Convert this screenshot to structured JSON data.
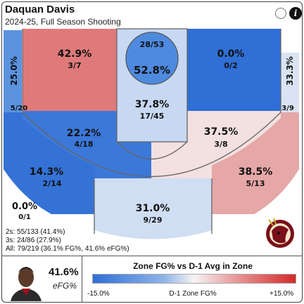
{
  "header": {
    "player_name": "Daquan Davis",
    "season_label": "2024-25, Full Season Shooting"
  },
  "colors": {
    "cold": "#2f6fd6",
    "neutral": "#f6f3f3",
    "hot": "#d42a2a",
    "court_lines": "#666666"
  },
  "zones": {
    "rim": {
      "pct": "52.8%",
      "makes_att": "28/53",
      "color": "#4d8ae0"
    },
    "paint": {
      "pct": "37.8%",
      "makes_att": "17/45",
      "color": "#c7d9f2"
    },
    "left_corner": {
      "pct": "25.0%",
      "makes_att": "5/20",
      "color": "#5b93e0"
    },
    "left_baseline_mid": {
      "pct": "42.9%",
      "makes_att": "3/7",
      "color": "#e07a7a"
    },
    "right_baseline_mid": {
      "pct": "0.0%",
      "makes_att": "0/2",
      "color": "#2f6fd6"
    },
    "right_corner": {
      "pct": "33.3%",
      "makes_att": "3/9",
      "color": "#d9e3f3"
    },
    "left_elbow_mid": {
      "pct": "22.2%",
      "makes_att": "4/18",
      "color": "#3b78d8"
    },
    "right_elbow_mid": {
      "pct": "37.5%",
      "makes_att": "3/8",
      "color": "#f3e0e0"
    },
    "left_wing_three": {
      "pct": "14.3%",
      "makes_att": "2/14",
      "color": "#3472d6"
    },
    "top_key_three": {
      "pct": "31.0%",
      "makes_att": "9/29",
      "color": "#cfdef2"
    },
    "right_wing_three": {
      "pct": "38.5%",
      "makes_att": "5/13",
      "color": "#e6a7a7"
    },
    "deep_left": {
      "pct": "0.0%",
      "makes_att": "0/1"
    }
  },
  "summary": {
    "twos": "2s: 55/133 (41.4%)",
    "threes": "3s: 24/86 (27.9%)",
    "all": "All: 79/219 (36.1% FG%, 41.6% eFG%)"
  },
  "footer": {
    "efg_value": "41.6%",
    "efg_label": "eFG%",
    "legend_title": "Zone FG% vs D-1 Avg in Zone",
    "legend_min": "-15.0%",
    "legend_mid": "D-1 Zone FG%",
    "legend_max": "+15.0%"
  },
  "icons": {
    "team_logo": "seminole-head-logo",
    "player_photo": "player-headshot",
    "toggle": "toggle-circle-icon",
    "info": "info-icon"
  }
}
